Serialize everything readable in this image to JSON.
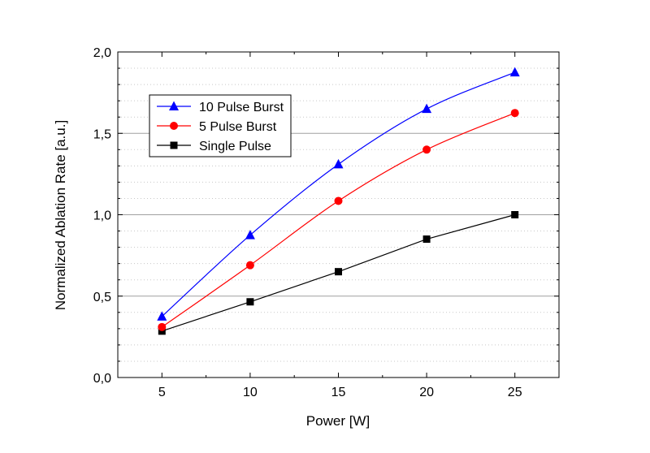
{
  "chart_data": {
    "type": "line",
    "title": "",
    "xlabel": "Power [W]",
    "ylabel": "Normalized Ablation Rate [a.u.]",
    "x": [
      5,
      10,
      15,
      20,
      25
    ],
    "x_tick_labels": [
      "5",
      "10",
      "15",
      "20",
      "25"
    ],
    "y_tick_labels": [
      "0,0",
      "0,5",
      "1,0",
      "1,5",
      "2,0"
    ],
    "y_ticks": [
      0,
      0.5,
      1.0,
      1.5,
      2.0
    ],
    "xlim": [
      2.5,
      27.5
    ],
    "ylim": [
      0,
      2.0
    ],
    "grid": "horizontal major solid, minor dotted",
    "legend_position": "top-left",
    "series": [
      {
        "name": "10 Pulse Burst",
        "color": "#0000ff",
        "marker": "triangle",
        "values": [
          0.375,
          0.875,
          1.31,
          1.65,
          1.875
        ]
      },
      {
        "name": "5 Pulse Burst",
        "color": "#ff0000",
        "marker": "circle",
        "values": [
          0.31,
          0.69,
          1.085,
          1.4,
          1.625
        ]
      },
      {
        "name": "Single Pulse",
        "color": "#000000",
        "marker": "square",
        "values": [
          0.285,
          0.465,
          0.65,
          0.85,
          1.0
        ]
      }
    ]
  }
}
